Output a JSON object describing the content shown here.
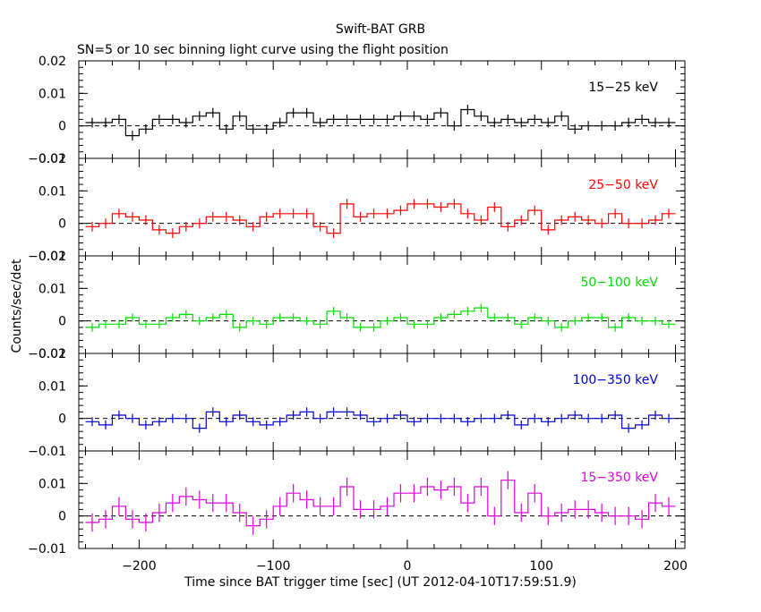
{
  "figure": {
    "title": "Swift-BAT GRB",
    "subtitle": "SN=5 or 10 sec binning light curve using the flight position",
    "xlabel": "Time since BAT trigger time [sec] (UT 2012-04-10T17:59:51.9)",
    "ylabel": "Counts/sec/det"
  },
  "chart_data": {
    "type": "line",
    "xlim": [
      -245,
      207
    ],
    "x_ticks": [
      -200,
      -100,
      0,
      100,
      200
    ],
    "bin_width_sec": 10,
    "series": [
      {
        "name": "15−25 keV",
        "color": "#000000",
        "ylim": [
          -0.01,
          0.02
        ],
        "y_ticks": [
          -0.01,
          0,
          0.01,
          0.02
        ],
        "y_tick_labels": [
          "−0.01",
          "0",
          "0.01",
          "0.02"
        ],
        "x": [
          -235,
          -225,
          -215,
          -205,
          -195,
          -185,
          -175,
          -165,
          -155,
          -145,
          -135,
          -125,
          -115,
          -105,
          -95,
          -85,
          -75,
          -65,
          -55,
          -45,
          -35,
          -25,
          -15,
          -5,
          5,
          15,
          25,
          35,
          45,
          55,
          65,
          75,
          85,
          95,
          105,
          115,
          125,
          135,
          145,
          155,
          165,
          175,
          185,
          195
        ],
        "y": [
          0.001,
          0.001,
          0.002,
          -0.003,
          -0.001,
          0.002,
          0.002,
          0.001,
          0.003,
          0.004,
          -0.001,
          0.003,
          -0.001,
          -0.001,
          0.001,
          0.004,
          0.004,
          0.001,
          0.002,
          0.002,
          0.002,
          0.002,
          0.002,
          0.003,
          0.003,
          0.002,
          0.004,
          0.0,
          0.005,
          0.003,
          0.001,
          0.002,
          0.001,
          0.002,
          0.001,
          0.003,
          -0.001,
          0.0,
          0.0,
          0.0,
          0.001,
          0.002,
          0.001,
          0.001
        ],
        "err": [
          0.0015,
          0.0015,
          0.0015,
          0.0015,
          0.0015,
          0.0015,
          0.0015,
          0.0015,
          0.0015,
          0.0015,
          0.0015,
          0.0015,
          0.0015,
          0.0015,
          0.0015,
          0.0015,
          0.0015,
          0.0015,
          0.0015,
          0.0015,
          0.0015,
          0.0015,
          0.0015,
          0.0015,
          0.0015,
          0.0015,
          0.0015,
          0.0015,
          0.0015,
          0.0015,
          0.0015,
          0.0015,
          0.0015,
          0.0015,
          0.0015,
          0.0015,
          0.0015,
          0.0015,
          0.0015,
          0.0015,
          0.0015,
          0.0015,
          0.0015,
          0.0015
        ]
      },
      {
        "name": "25−50 keV",
        "color": "#ff0000",
        "ylim": [
          -0.01,
          0.02
        ],
        "y_ticks": [
          -0.01,
          0,
          0.01,
          0.02
        ],
        "y_tick_labels": [
          "−0.01",
          "0",
          "0.01",
          "0.02"
        ],
        "x": [
          -235,
          -225,
          -215,
          -205,
          -195,
          -185,
          -175,
          -165,
          -155,
          -145,
          -135,
          -125,
          -115,
          -105,
          -95,
          -85,
          -75,
          -65,
          -55,
          -45,
          -35,
          -25,
          -15,
          -5,
          5,
          15,
          25,
          35,
          45,
          55,
          65,
          75,
          85,
          95,
          105,
          115,
          125,
          135,
          145,
          155,
          165,
          175,
          185,
          195
        ],
        "y": [
          -0.001,
          0.0,
          0.003,
          0.002,
          0.001,
          -0.002,
          -0.003,
          -0.001,
          0.0,
          0.002,
          0.002,
          0.001,
          -0.001,
          0.002,
          0.003,
          0.003,
          0.003,
          -0.001,
          -0.003,
          0.006,
          0.002,
          0.003,
          0.003,
          0.004,
          0.006,
          0.006,
          0.005,
          0.006,
          0.003,
          0.001,
          0.005,
          -0.001,
          0.001,
          0.004,
          -0.002,
          0.001,
          0.002,
          0.001,
          0.0,
          0.003,
          0.0,
          0.0,
          0.001,
          0.003
        ],
        "err": [
          0.0015,
          0.0015,
          0.0015,
          0.0015,
          0.0015,
          0.0015,
          0.0015,
          0.0015,
          0.0015,
          0.0015,
          0.0015,
          0.0015,
          0.0015,
          0.0015,
          0.0015,
          0.0015,
          0.0015,
          0.0015,
          0.0015,
          0.0015,
          0.0015,
          0.0015,
          0.0015,
          0.0015,
          0.0015,
          0.0015,
          0.0015,
          0.0015,
          0.0015,
          0.0015,
          0.0015,
          0.0015,
          0.0015,
          0.0015,
          0.0015,
          0.0015,
          0.0015,
          0.0015,
          0.0015,
          0.0015,
          0.0015,
          0.0015,
          0.0015,
          0.0015
        ]
      },
      {
        "name": "50−100 keV",
        "color": "#00dd00",
        "ylim": [
          -0.01,
          0.02
        ],
        "y_ticks": [
          -0.01,
          0,
          0.01,
          0.02
        ],
        "y_tick_labels": [
          "−0.01",
          "0",
          "0.01",
          "0.02"
        ],
        "x": [
          -235,
          -225,
          -215,
          -205,
          -195,
          -185,
          -175,
          -165,
          -155,
          -145,
          -135,
          -125,
          -115,
          -105,
          -95,
          -85,
          -75,
          -65,
          -55,
          -45,
          -35,
          -25,
          -15,
          -5,
          5,
          15,
          25,
          35,
          45,
          55,
          65,
          75,
          85,
          95,
          105,
          115,
          125,
          135,
          145,
          155,
          165,
          175,
          185,
          195
        ],
        "y": [
          -0.002,
          -0.001,
          -0.001,
          0.001,
          -0.001,
          -0.001,
          0.001,
          0.002,
          0.0,
          0.001,
          0.002,
          -0.002,
          0.0,
          -0.001,
          0.001,
          0.001,
          0.0,
          -0.001,
          0.003,
          0.001,
          -0.002,
          -0.002,
          0.0,
          0.001,
          -0.001,
          -0.001,
          0.001,
          0.002,
          0.003,
          0.004,
          0.001,
          0.001,
          -0.001,
          0.001,
          0.0,
          -0.002,
          0.0,
          0.001,
          0.001,
          -0.002,
          0.001,
          0.0,
          0.0,
          -0.001
        ],
        "err": [
          0.0013,
          0.0013,
          0.0013,
          0.0013,
          0.0013,
          0.0013,
          0.0013,
          0.0013,
          0.0013,
          0.0013,
          0.0013,
          0.0013,
          0.0013,
          0.0013,
          0.0013,
          0.0013,
          0.0013,
          0.0013,
          0.0013,
          0.0013,
          0.0013,
          0.0013,
          0.0013,
          0.0013,
          0.0013,
          0.0013,
          0.0013,
          0.0013,
          0.0013,
          0.0013,
          0.0013,
          0.0013,
          0.0013,
          0.0013,
          0.0013,
          0.0013,
          0.0013,
          0.0013,
          0.0013,
          0.0013,
          0.0013,
          0.0013,
          0.0013,
          0.0013
        ]
      },
      {
        "name": "100−350 keV",
        "color": "#0000cc",
        "ylim": [
          -0.01,
          0.02
        ],
        "y_ticks": [
          -0.01,
          0,
          0.01,
          0.02
        ],
        "y_tick_labels": [
          "−0.01",
          "0",
          "0.01",
          "0.02"
        ],
        "x": [
          -235,
          -225,
          -215,
          -205,
          -195,
          -185,
          -175,
          -165,
          -155,
          -145,
          -135,
          -125,
          -115,
          -105,
          -95,
          -85,
          -75,
          -65,
          -55,
          -45,
          -35,
          -25,
          -15,
          -5,
          5,
          15,
          25,
          35,
          45,
          55,
          65,
          75,
          85,
          95,
          105,
          115,
          125,
          135,
          145,
          155,
          165,
          175,
          185,
          195
        ],
        "y": [
          -0.001,
          -0.002,
          0.001,
          0.0,
          -0.002,
          -0.001,
          0.0,
          0.0,
          -0.003,
          0.002,
          -0.001,
          0.001,
          -0.001,
          -0.002,
          -0.001,
          0.001,
          0.002,
          0.0,
          0.002,
          0.002,
          0.001,
          -0.001,
          0.0,
          0.001,
          -0.001,
          0.0,
          0.0,
          0.0,
          -0.001,
          0.0,
          0.0,
          0.001,
          -0.002,
          0.0,
          -0.001,
          0.0,
          0.001,
          0.0,
          0.0,
          0.001,
          -0.003,
          -0.002,
          0.001,
          0.0
        ],
        "err": [
          0.0014,
          0.0014,
          0.0014,
          0.0014,
          0.0014,
          0.0014,
          0.0014,
          0.0014,
          0.0014,
          0.0014,
          0.0014,
          0.0014,
          0.0014,
          0.0014,
          0.0014,
          0.0014,
          0.0014,
          0.0014,
          0.0014,
          0.0014,
          0.0014,
          0.0014,
          0.0014,
          0.0014,
          0.0014,
          0.0014,
          0.0014,
          0.0014,
          0.0014,
          0.0014,
          0.0014,
          0.0014,
          0.0014,
          0.0014,
          0.0014,
          0.0014,
          0.0014,
          0.0014,
          0.0014,
          0.0014,
          0.0014,
          0.0014,
          0.0014,
          0.0014
        ]
      },
      {
        "name": "15−350 keV",
        "color": "#dd00dd",
        "ylim": [
          -0.01,
          0.02
        ],
        "y_ticks": [
          -0.01,
          0,
          0.01
        ],
        "y_tick_labels": [
          "−0.01",
          "0",
          "0.01"
        ],
        "x": [
          -235,
          -225,
          -215,
          -205,
          -195,
          -185,
          -175,
          -165,
          -155,
          -145,
          -135,
          -125,
          -115,
          -105,
          -95,
          -85,
          -75,
          -65,
          -55,
          -45,
          -35,
          -25,
          -15,
          -5,
          5,
          15,
          25,
          35,
          45,
          55,
          65,
          75,
          85,
          95,
          105,
          115,
          125,
          135,
          145,
          155,
          165,
          175,
          185,
          195
        ],
        "y": [
          -0.002,
          -0.001,
          0.003,
          -0.001,
          -0.002,
          0.001,
          0.004,
          0.006,
          0.005,
          0.004,
          0.004,
          0.001,
          -0.003,
          -0.001,
          0.003,
          0.007,
          0.005,
          0.003,
          0.003,
          0.009,
          0.002,
          0.002,
          0.003,
          0.007,
          0.007,
          0.009,
          0.008,
          0.009,
          0.004,
          0.009,
          0.0,
          0.011,
          0.001,
          0.007,
          0.0,
          0.001,
          0.002,
          0.002,
          0.001,
          0.0,
          0.0,
          -0.001,
          0.004,
          0.003
        ],
        "err": [
          0.0028,
          0.0028,
          0.0028,
          0.0028,
          0.0028,
          0.0028,
          0.0028,
          0.0028,
          0.0028,
          0.0028,
          0.0028,
          0.0028,
          0.0028,
          0.0028,
          0.0028,
          0.0028,
          0.0028,
          0.0028,
          0.0028,
          0.0028,
          0.0028,
          0.0028,
          0.0028,
          0.0028,
          0.0028,
          0.0028,
          0.0028,
          0.0028,
          0.0028,
          0.0028,
          0.0028,
          0.0028,
          0.0028,
          0.0028,
          0.0028,
          0.0028,
          0.0028,
          0.0028,
          0.0028,
          0.0028,
          0.0028,
          0.0028,
          0.0028,
          0.0028
        ]
      }
    ]
  }
}
